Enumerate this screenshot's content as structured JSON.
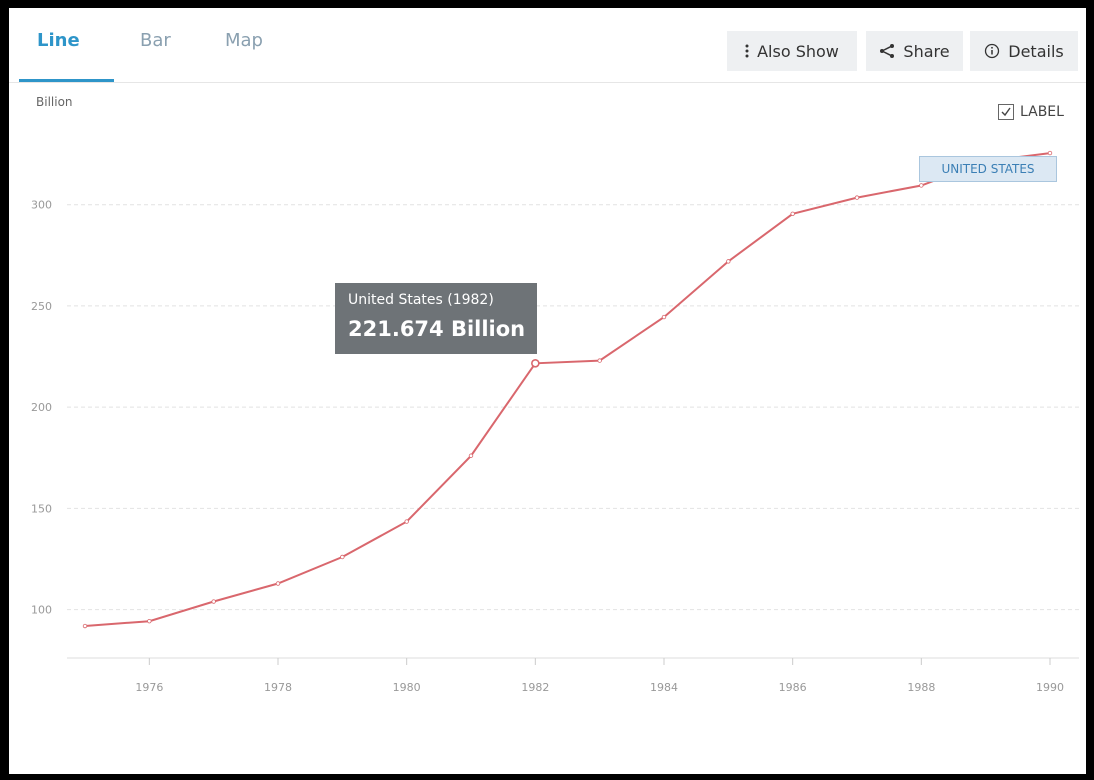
{
  "tabs": [
    {
      "label": "Line",
      "active": true
    },
    {
      "label": "Bar",
      "active": false
    },
    {
      "label": "Map",
      "active": false
    }
  ],
  "toolbar": {
    "also_show_label": "Also Show",
    "share_label": "Share",
    "details_label": "Details"
  },
  "label_toggle": {
    "label": "LABEL",
    "checked": true
  },
  "tooltip": {
    "title": "United States (1982)",
    "value": "221.674 Billion"
  },
  "series_label": "UNITED STATES",
  "colors": {
    "accent": "#2e95c9",
    "series": "#d9676d",
    "tooltip_bg": "#6e7377"
  },
  "chart_data": {
    "type": "line",
    "ylabel": "Billion",
    "xlim": [
      1975,
      1990
    ],
    "ylim": [
      85,
      328
    ],
    "x_ticks": [
      1976,
      1978,
      1980,
      1982,
      1984,
      1986,
      1988,
      1990
    ],
    "y_ticks": [
      100,
      150,
      200,
      250,
      300
    ],
    "grid": true,
    "highlight_x": 1982,
    "series": [
      {
        "name": "United States",
        "x": [
          1975,
          1976,
          1977,
          1978,
          1979,
          1980,
          1981,
          1982,
          1983,
          1984,
          1985,
          1986,
          1987,
          1988,
          1989,
          1990
        ],
        "values": [
          91.9,
          94.3,
          104.0,
          112.9,
          126.0,
          143.5,
          176.0,
          221.674,
          223.0,
          244.5,
          272.0,
          295.5,
          303.5,
          309.5,
          321.5,
          325.5
        ]
      }
    ]
  }
}
